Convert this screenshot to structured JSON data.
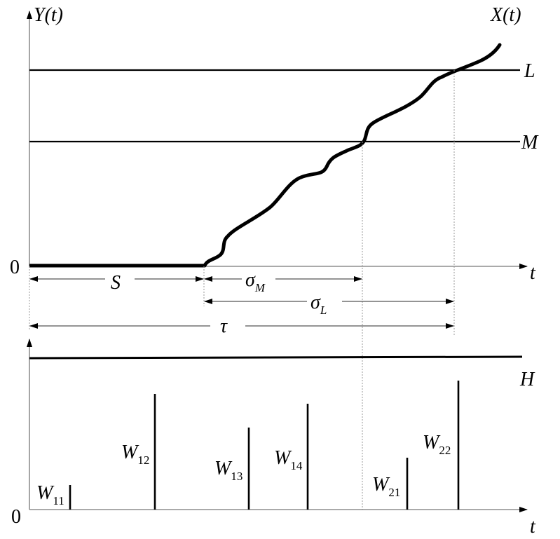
{
  "top": {
    "y_axis_label": "Y(t)",
    "curve_label": "X(t)",
    "origin_label": "0",
    "x_axis_label": "t",
    "level_L": "L",
    "level_M": "M",
    "intervals": {
      "S": "S",
      "sigma": "σ",
      "sigma_M_sub": "M",
      "sigma_L_sub": "L",
      "tau": "τ"
    }
  },
  "bottom": {
    "origin_label": "0",
    "x_axis_label": "t",
    "level_H": "H",
    "bars": [
      {
        "base": "W",
        "sub": "11"
      },
      {
        "base": "W",
        "sub": "12"
      },
      {
        "base": "W",
        "sub": "13"
      },
      {
        "base": "W",
        "sub": "14"
      },
      {
        "base": "W",
        "sub": "21"
      },
      {
        "base": "W",
        "sub": "22"
      }
    ]
  }
}
